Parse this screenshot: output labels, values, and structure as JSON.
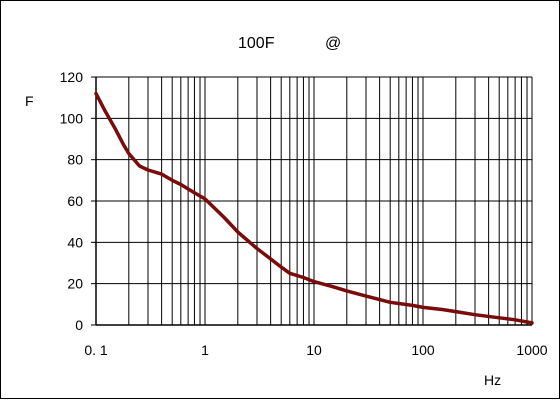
{
  "chart_data": {
    "type": "line",
    "title_left": "100F",
    "title_right": "@",
    "xlabel": "Hz",
    "ylabel": "F",
    "x_scale": "log",
    "xlim": [
      0.1,
      1000
    ],
    "ylim": [
      0,
      120
    ],
    "x_tick_labels": [
      "0. 1",
      "1",
      "10",
      "100",
      "1000"
    ],
    "y_tick_labels": [
      "0",
      "20",
      "40",
      "60",
      "80",
      "100",
      "120"
    ],
    "grid": true,
    "series": [
      {
        "color": "#7a0b0b",
        "x": [
          0.1,
          0.12,
          0.15,
          0.18,
          0.2,
          0.25,
          0.3,
          0.4,
          0.5,
          0.6,
          0.8,
          1,
          1.2,
          1.5,
          2,
          3,
          4,
          5,
          6,
          8,
          10,
          15,
          20,
          30,
          50,
          80,
          100,
          150,
          200,
          300,
          500,
          700,
          1000
        ],
        "y": [
          112,
          104,
          95,
          87,
          83,
          77,
          75,
          73,
          70,
          68,
          64,
          61,
          57,
          52,
          45,
          37,
          32,
          28,
          25,
          23,
          21,
          18.5,
          16.5,
          14,
          11,
          9.5,
          8.5,
          7.5,
          6.5,
          5,
          3.5,
          2.5,
          1
        ]
      }
    ]
  }
}
